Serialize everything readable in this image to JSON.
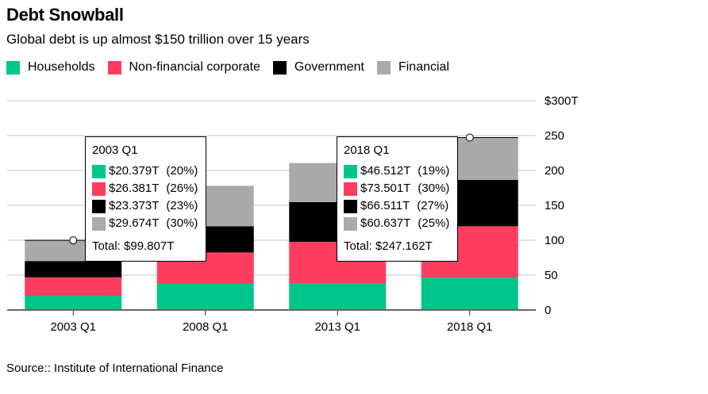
{
  "header": {
    "title": "Debt Snowball",
    "subtitle": "Global debt is up almost $150 trillion over 15 years"
  },
  "footer": {
    "source": "Source:: Institute of International Finance"
  },
  "colors": {
    "Households": "#00c58a",
    "Non-financial corporate": "#ff3e5f",
    "Government": "#000000",
    "Financial": "#aaaaaa"
  },
  "chart_data": {
    "type": "bar",
    "stacked": true,
    "title": "Debt Snowball",
    "subtitle": "Global debt is up almost $150 trillion over 15 years",
    "xlabel": "",
    "ylabel": "",
    "categories": [
      "2003 Q1",
      "2008 Q1",
      "2013 Q1",
      "2018 Q1"
    ],
    "series": [
      {
        "name": "Households",
        "values": [
          20.379,
          37.5,
          38.6,
          46.512
        ]
      },
      {
        "name": "Non-financial corporate",
        "values": [
          26.381,
          45,
          59,
          73.501
        ]
      },
      {
        "name": "Government",
        "values": [
          23.373,
          37.5,
          57,
          66.511
        ]
      },
      {
        "name": "Financial",
        "values": [
          29.674,
          58,
          56,
          60.637
        ]
      }
    ],
    "ylim": [
      0,
      300
    ],
    "yticks": [
      0,
      50,
      100,
      150,
      200,
      250,
      300
    ],
    "ytick_labels": [
      "0",
      "50",
      "100",
      "150",
      "200",
      "250",
      "$300T"
    ],
    "y_axis_side": "right",
    "grid": true,
    "legend": {
      "placement": "top-left",
      "entries": [
        "Households",
        "Non-financial corporate",
        "Government",
        "Financial"
      ]
    },
    "annotations": [
      {
        "category": "2003 Q1",
        "title": "2003 Q1",
        "rows": [
          {
            "series": "Households",
            "value": "$20.379T",
            "pct": "(20%)"
          },
          {
            "series": "Non-financial corporate",
            "value": "$26.381T",
            "pct": "(26%)"
          },
          {
            "series": "Government",
            "value": "$23.373T",
            "pct": "(23%)"
          },
          {
            "series": "Financial",
            "value": "$29.674T",
            "pct": "(30%)"
          }
        ],
        "total": "Total: $99.807T",
        "total_value": 99.807
      },
      {
        "category": "2018 Q1",
        "title": "2018 Q1",
        "rows": [
          {
            "series": "Households",
            "value": "$46.512T",
            "pct": "(19%)"
          },
          {
            "series": "Non-financial corporate",
            "value": "$73.501T",
            "pct": "(30%)"
          },
          {
            "series": "Government",
            "value": "$66.511T",
            "pct": "(27%)"
          },
          {
            "series": "Financial",
            "value": "$60.637T",
            "pct": "(25%)"
          }
        ],
        "total": "Total: $247.162T",
        "total_value": 247.162
      }
    ]
  }
}
